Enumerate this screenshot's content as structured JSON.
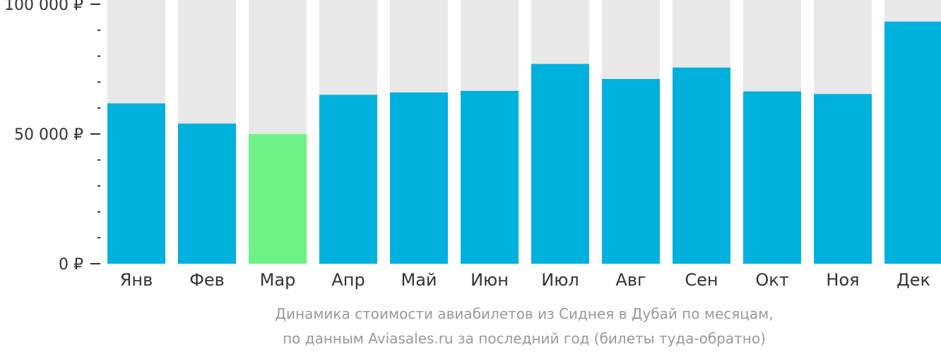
{
  "chart_data": {
    "type": "bar",
    "categories": [
      "Янв",
      "Фев",
      "Мар",
      "Апр",
      "Май",
      "Июн",
      "Июл",
      "Авг",
      "Сен",
      "Окт",
      "Ноя",
      "Дек"
    ],
    "values": [
      61800,
      54000,
      50000,
      65100,
      66000,
      66600,
      77000,
      71200,
      75600,
      66400,
      65400,
      93300
    ],
    "highlight_index": 2,
    "ylim": [
      0,
      100000
    ],
    "yticks": [
      0,
      50000,
      100000
    ],
    "ytick_labels": [
      "0 ₽",
      "50 000 ₽",
      "100 000 ₽"
    ],
    "minor_ticks_per_interval": 5,
    "title": "",
    "xlabel": "",
    "ylabel": "",
    "grid": false,
    "caption_line1": "Динамика стоимости авиабилетов из Сиднея в Дубай по месяцам,",
    "caption_line2": "по данным Aviasales.ru за последний год (билеты туда-обратно)",
    "colors": {
      "bar": "#00b0dd",
      "highlight": "#6ef287",
      "background_bar": "#e8e8e8",
      "axis": "#333333",
      "caption": "#999999"
    }
  }
}
